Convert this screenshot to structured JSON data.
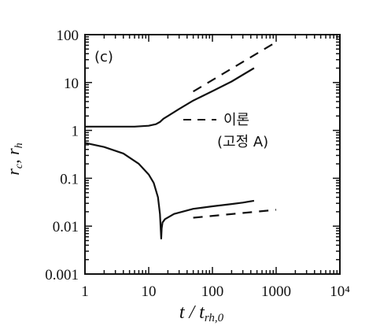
{
  "chart_data": {
    "type": "line",
    "panel_label": "(c)",
    "xlabel": "t / t_{rh,0}",
    "ylabel": "r_c, r_h",
    "xscale": "log",
    "yscale": "log",
    "xlim": [
      1,
      10000
    ],
    "ylim": [
      0.001,
      100
    ],
    "x_ticks": [
      1,
      10,
      100,
      1000,
      10000
    ],
    "x_tick_labels": [
      "1",
      "10",
      "100",
      "1000",
      "10⁴"
    ],
    "y_ticks": [
      0.001,
      0.01,
      0.1,
      1,
      10,
      100
    ],
    "y_tick_labels": [
      "0.001",
      "0.01",
      "0.1",
      "1",
      "10",
      "100"
    ],
    "legend": {
      "line1": "이론",
      "line2": "(고정 A)",
      "style": "dashed"
    },
    "series": [
      {
        "style": "solid",
        "points": [
          [
            1,
            1.2
          ],
          [
            3,
            1.2
          ],
          [
            6,
            1.2
          ],
          [
            10,
            1.25
          ],
          [
            13,
            1.35
          ],
          [
            15,
            1.5
          ],
          [
            17,
            1.75
          ],
          [
            20,
            2.0
          ],
          [
            30,
            2.8
          ],
          [
            50,
            4.2
          ],
          [
            100,
            6.6
          ],
          [
            200,
            10.5
          ],
          [
            300,
            14.5
          ],
          [
            450,
            20
          ]
        ]
      },
      {
        "style": "solid",
        "points": [
          [
            1,
            0.55
          ],
          [
            2,
            0.45
          ],
          [
            4,
            0.33
          ],
          [
            7,
            0.2
          ],
          [
            10,
            0.12
          ],
          [
            12,
            0.08
          ],
          [
            14,
            0.04
          ],
          [
            15,
            0.018
          ],
          [
            15.5,
            0.008
          ],
          [
            15.7,
            0.0055
          ],
          [
            16,
            0.009
          ],
          [
            16.5,
            0.012
          ],
          [
            18,
            0.014
          ],
          [
            25,
            0.018
          ],
          [
            50,
            0.023
          ],
          [
            100,
            0.026
          ],
          [
            200,
            0.029
          ],
          [
            300,
            0.031
          ],
          [
            450,
            0.034
          ]
        ]
      },
      {
        "style": "dashed",
        "points": [
          [
            50,
            6.5
          ],
          [
            1000,
            70
          ]
        ]
      },
      {
        "style": "dashed",
        "points": [
          [
            50,
            0.015
          ],
          [
            1000,
            0.022
          ]
        ]
      }
    ]
  }
}
